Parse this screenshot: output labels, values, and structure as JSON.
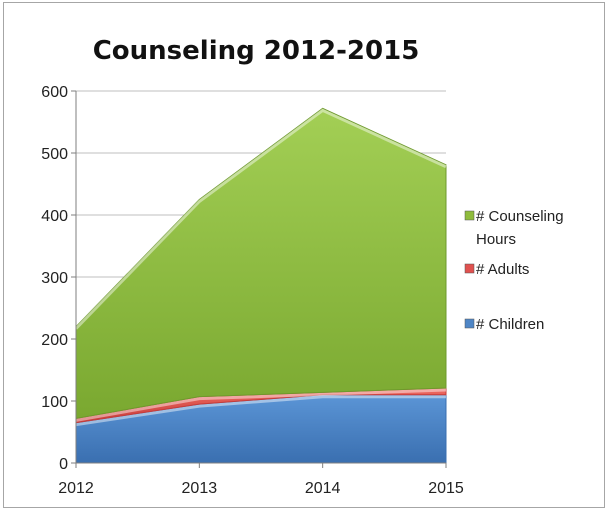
{
  "chart_data": {
    "type": "area",
    "stacked": true,
    "title": "Counseling 2012-2015",
    "xlabel": "",
    "ylabel": "",
    "categories": [
      "2012",
      "2013",
      "2014",
      "2015"
    ],
    "series": [
      {
        "name": "# Children",
        "values": [
          65,
          95,
          110,
          110
        ],
        "color": "#4f86c6"
      },
      {
        "name": "# Adults",
        "values": [
          7,
          12,
          4,
          11
        ],
        "color": "#e0514f"
      },
      {
        "name": "# Counseling Hours",
        "values": [
          148,
          318,
          458,
          360
        ],
        "color": "#8fbc3c"
      }
    ],
    "ylim": [
      0,
      600
    ],
    "yticks": [
      "0",
      "100",
      "200",
      "300",
      "400",
      "500",
      "600"
    ],
    "grid": true,
    "legend": {
      "position": "right",
      "order": [
        "# Counseling Hours",
        "# Adults",
        "# Children"
      ],
      "labels": [
        {
          "series": "# Counseling Hours",
          "lines": [
            "# Counseling",
            "Hours"
          ]
        },
        {
          "series": "# Adults",
          "lines": [
            "# Adults"
          ]
        },
        {
          "series": "# Children",
          "lines": [
            "# Children"
          ]
        }
      ]
    }
  }
}
